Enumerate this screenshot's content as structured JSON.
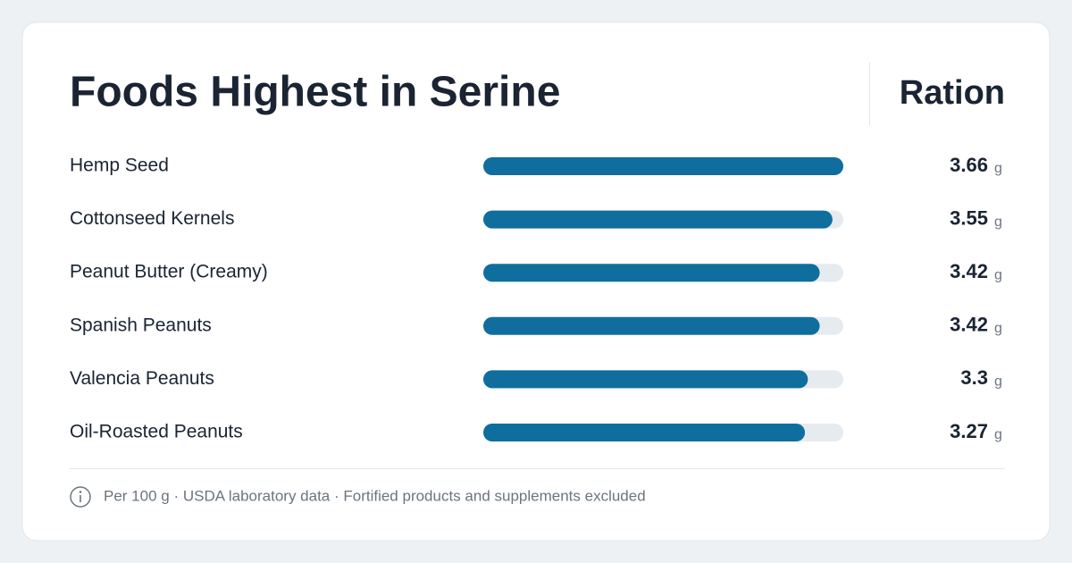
{
  "chart_data": {
    "type": "bar",
    "orientation": "horizontal",
    "title": "Foods Highest in Serine",
    "value_header": "Ration",
    "unit": "g",
    "categories": [
      "Hemp Seed",
      "Cottonseed Kernels",
      "Peanut Butter (Creamy)",
      "Spanish Peanuts",
      "Valencia Peanuts",
      "Oil-Roasted Peanuts"
    ],
    "values": [
      3.66,
      3.55,
      3.42,
      3.42,
      3.3,
      3.27
    ],
    "xlim": [
      0,
      3.66
    ],
    "color": "#0f6e9e",
    "footnote": "Per 100 g · USDA laboratory data · Fortified products and supplements excluded"
  }
}
